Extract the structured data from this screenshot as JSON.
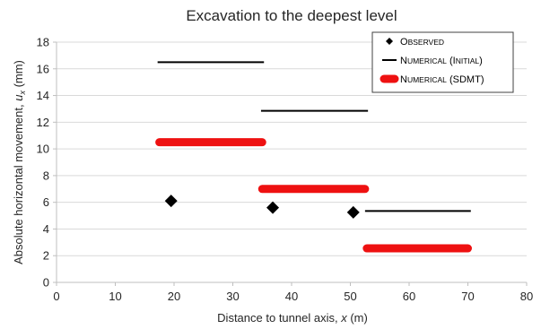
{
  "chart_data": {
    "type": "scatter",
    "title": "Excavation to the deepest level",
    "xlabel": {
      "prefix": "Distance to tunnel axis, ",
      "var": "x",
      "suffix": " (m)"
    },
    "ylabel": {
      "prefix": "Absolute horizontal movement, ",
      "var": "u",
      "sub": "x",
      "suffix": " (mm)"
    },
    "xlim": [
      0,
      80
    ],
    "ylim": [
      0,
      18
    ],
    "xticks": [
      0,
      10,
      20,
      30,
      40,
      50,
      60,
      70,
      80
    ],
    "yticks": [
      0,
      2,
      4,
      6,
      8,
      10,
      12,
      14,
      16,
      18
    ],
    "grid": {
      "x": false,
      "y": true
    },
    "legend_position": "top-right",
    "colors": {
      "observed": "#000000",
      "initial": "#000000",
      "sdmt": "#ee1111",
      "grid": "#d9d9d9",
      "axis": "#bfbfbf"
    },
    "series": [
      {
        "key": "observed",
        "name": "Observed",
        "marker": "diamond",
        "points": [
          {
            "x": 19.5,
            "y": 6.1
          },
          {
            "x": 36.8,
            "y": 5.6
          },
          {
            "x": 50.5,
            "y": 5.25
          }
        ]
      },
      {
        "key": "initial",
        "name": "Numerical (Initial)",
        "marker": "thin-line",
        "segments": [
          {
            "x1": 17.2,
            "x2": 35.3,
            "y": 16.5
          },
          {
            "x1": 34.8,
            "x2": 53.0,
            "y": 12.85
          },
          {
            "x1": 52.5,
            "x2": 70.5,
            "y": 5.35
          }
        ]
      },
      {
        "key": "sdmt",
        "name": "Numerical (SDMT)",
        "marker": "thick-line",
        "segments": [
          {
            "x1": 17.5,
            "x2": 35.0,
            "y": 10.5
          },
          {
            "x1": 35.0,
            "x2": 52.5,
            "y": 7.0
          },
          {
            "x1": 52.8,
            "x2": 70.0,
            "y": 2.55
          }
        ]
      }
    ]
  }
}
